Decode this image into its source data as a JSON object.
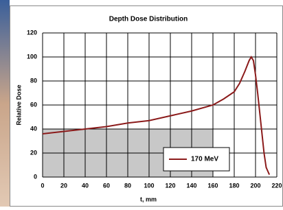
{
  "chart_data": {
    "type": "line",
    "title": "Depth Dose Distribution",
    "x_label": "t, mm",
    "y_label": "Relative Dose",
    "xlim": [
      0,
      220
    ],
    "xticks": [
      0,
      20,
      40,
      60,
      80,
      100,
      120,
      140,
      160,
      180,
      200,
      220
    ],
    "ylim": [
      0,
      120
    ],
    "yticks": [
      0,
      20,
      40,
      60,
      80,
      100,
      120
    ],
    "grid": true,
    "legend": "lower right",
    "shaded_box": {
      "x": [
        0,
        160
      ],
      "y": [
        0,
        40
      ],
      "color": "#c8c8c8"
    },
    "series": [
      {
        "name": "170 MeV",
        "color": "#8b1a1a",
        "x": [
          0,
          20,
          40,
          60,
          80,
          100,
          120,
          140,
          160,
          170,
          180,
          185,
          190,
          194,
          196,
          198,
          200,
          202,
          205,
          208,
          210,
          213
        ],
        "values": [
          36,
          38,
          40,
          42,
          45,
          47,
          51,
          55,
          60,
          65,
          71,
          78,
          88,
          97,
          100,
          97,
          85,
          70,
          45,
          20,
          8,
          2
        ]
      }
    ]
  }
}
